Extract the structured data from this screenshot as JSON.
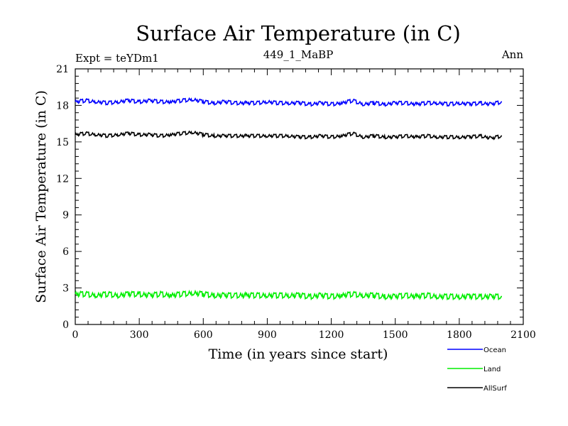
{
  "chart_data": {
    "type": "line",
    "title": "Surface Air Temperature (in C)",
    "subtitle_left": "Expt = teYDm1",
    "subtitle_center": "449_1_MaBP",
    "subtitle_right": "Ann",
    "xlabel": "Time (in years since start)",
    "ylabel": "Surface Air Temperature (in C)",
    "xlim": [
      0,
      2100
    ],
    "ylim": [
      0,
      21
    ],
    "x_ticks": [
      0,
      300,
      600,
      900,
      1200,
      1500,
      1800,
      2100
    ],
    "y_ticks": [
      0,
      3,
      6,
      9,
      12,
      15,
      18,
      21
    ],
    "x_tick_labels": [
      "0",
      "300",
      "600",
      "900",
      "1200",
      "1500",
      "1800",
      "2100"
    ],
    "y_tick_labels": [
      "0",
      "3",
      "6",
      "9",
      "12",
      "15",
      "18",
      "21"
    ],
    "legend_position": "bottom-right outside",
    "series": [
      {
        "name": "Ocean",
        "color": "#0000ff",
        "x": [
          0,
          50,
          100,
          150,
          200,
          250,
          300,
          350,
          400,
          450,
          500,
          550,
          600,
          650,
          700,
          750,
          800,
          850,
          900,
          950,
          1000,
          1050,
          1100,
          1150,
          1200,
          1250,
          1300,
          1350,
          1400,
          1450,
          1500,
          1550,
          1600,
          1650,
          1700,
          1750,
          1800,
          1850,
          1900,
          1950,
          2000
        ],
        "values": [
          18.3,
          18.4,
          18.3,
          18.2,
          18.3,
          18.4,
          18.3,
          18.4,
          18.3,
          18.3,
          18.4,
          18.5,
          18.3,
          18.2,
          18.3,
          18.2,
          18.2,
          18.2,
          18.3,
          18.2,
          18.2,
          18.2,
          18.1,
          18.2,
          18.1,
          18.2,
          18.4,
          18.1,
          18.2,
          18.1,
          18.2,
          18.2,
          18.1,
          18.2,
          18.2,
          18.1,
          18.2,
          18.1,
          18.2,
          18.1,
          18.3
        ]
      },
      {
        "name": "Land",
        "color": "#00ee00",
        "x": [
          0,
          50,
          100,
          150,
          200,
          250,
          300,
          350,
          400,
          450,
          500,
          550,
          600,
          650,
          700,
          750,
          800,
          850,
          900,
          950,
          1000,
          1050,
          1100,
          1150,
          1200,
          1250,
          1300,
          1350,
          1400,
          1450,
          1500,
          1550,
          1600,
          1650,
          1700,
          1750,
          1800,
          1850,
          1900,
          1950,
          2000
        ],
        "values": [
          2.5,
          2.5,
          2.4,
          2.5,
          2.4,
          2.5,
          2.5,
          2.4,
          2.5,
          2.4,
          2.5,
          2.6,
          2.5,
          2.4,
          2.4,
          2.4,
          2.4,
          2.4,
          2.4,
          2.4,
          2.4,
          2.4,
          2.3,
          2.4,
          2.3,
          2.4,
          2.5,
          2.4,
          2.4,
          2.3,
          2.3,
          2.4,
          2.3,
          2.4,
          2.3,
          2.3,
          2.3,
          2.3,
          2.3,
          2.3,
          2.3
        ]
      },
      {
        "name": "AllSurf",
        "color": "#000000",
        "x": [
          0,
          50,
          100,
          150,
          200,
          250,
          300,
          350,
          400,
          450,
          500,
          550,
          600,
          650,
          700,
          750,
          800,
          850,
          900,
          950,
          1000,
          1050,
          1100,
          1150,
          1200,
          1250,
          1300,
          1350,
          1400,
          1450,
          1500,
          1550,
          1600,
          1650,
          1700,
          1750,
          1800,
          1850,
          1900,
          1950,
          2000
        ],
        "values": [
          15.6,
          15.7,
          15.6,
          15.5,
          15.6,
          15.7,
          15.6,
          15.6,
          15.5,
          15.6,
          15.7,
          15.8,
          15.6,
          15.5,
          15.5,
          15.5,
          15.5,
          15.5,
          15.5,
          15.5,
          15.5,
          15.4,
          15.4,
          15.5,
          15.4,
          15.5,
          15.7,
          15.4,
          15.5,
          15.4,
          15.4,
          15.5,
          15.4,
          15.5,
          15.4,
          15.4,
          15.4,
          15.4,
          15.5,
          15.3,
          15.5
        ]
      }
    ]
  }
}
